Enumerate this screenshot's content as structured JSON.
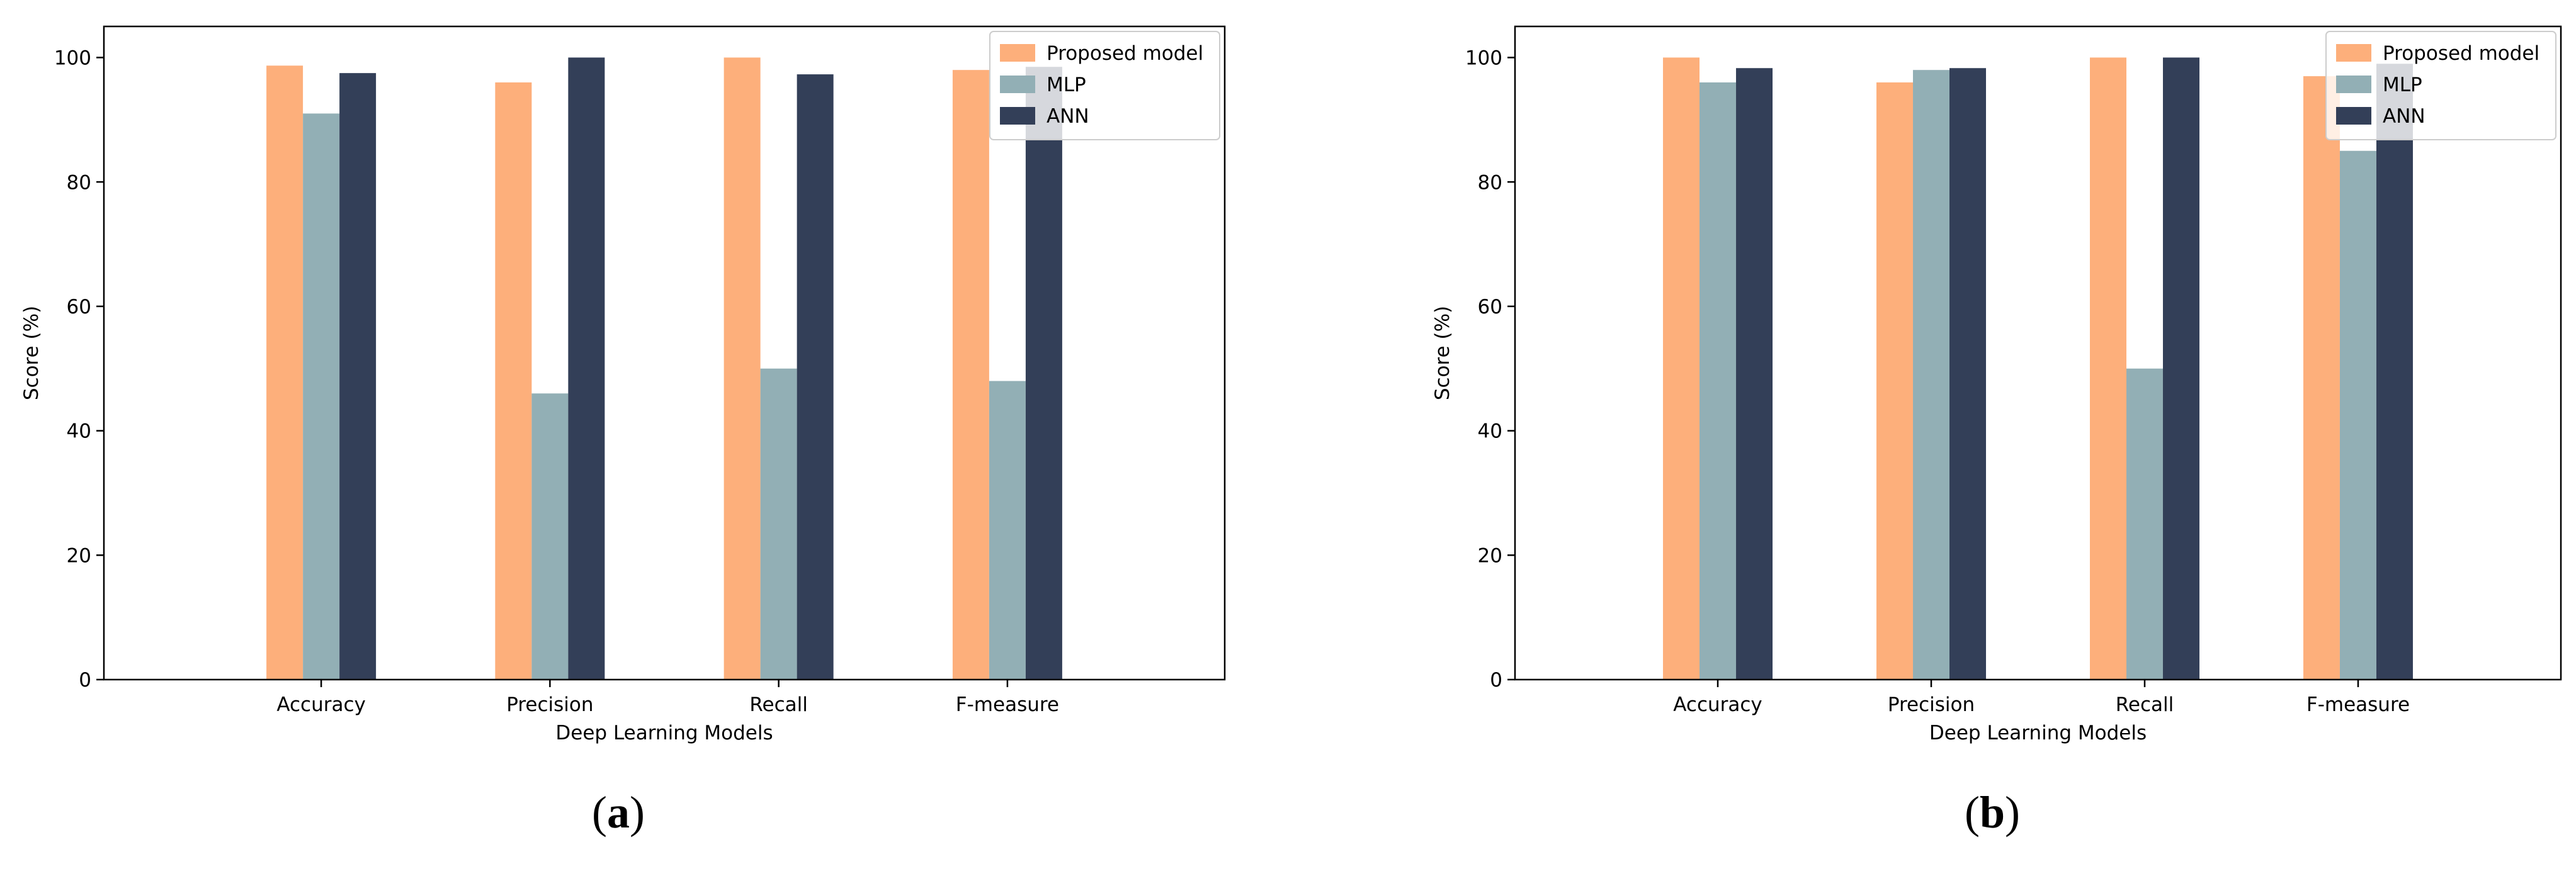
{
  "colors": {
    "proposed": "#FDAF7B",
    "mlp": "#92AFB5",
    "ann": "#333F58",
    "axis": "#000000",
    "legend_border": "#CCCCCC"
  },
  "captions": [
    {
      "open": "(",
      "letter": "a",
      "close": ")"
    },
    {
      "open": "(",
      "letter": "b",
      "close": ")"
    }
  ],
  "chart_data": [
    {
      "type": "bar",
      "title": "",
      "xlabel": "Deep Learning Models",
      "ylabel": "Score (%)",
      "ylim": [
        0,
        105
      ],
      "yticks": [
        "0",
        "20",
        "40",
        "60",
        "80",
        "100"
      ],
      "categories": [
        "Accuracy",
        "Precision",
        "Recall",
        "F-measure"
      ],
      "legend_position": "top-right",
      "series": [
        {
          "name": "Proposed model",
          "color_key": "proposed",
          "values": [
            98.7,
            96.0,
            100.0,
            98.0
          ]
        },
        {
          "name": "MLP",
          "color_key": "mlp",
          "values": [
            91.0,
            46.0,
            50.0,
            48.0
          ]
        },
        {
          "name": "ANN",
          "color_key": "ann",
          "values": [
            97.5,
            100.0,
            97.3,
            98.5
          ]
        }
      ]
    },
    {
      "type": "bar",
      "title": "",
      "xlabel": "Deep Learning Models",
      "ylabel": "Score (%)",
      "ylim": [
        0,
        105
      ],
      "yticks": [
        "0",
        "20",
        "40",
        "60",
        "80",
        "100"
      ],
      "categories": [
        "Accuracy",
        "Precision",
        "Recall",
        "F-measure"
      ],
      "legend_position": "top-right",
      "series": [
        {
          "name": "Proposed model",
          "color_key": "proposed",
          "values": [
            100.0,
            96.0,
            100.0,
            97.0
          ]
        },
        {
          "name": "MLP",
          "color_key": "mlp",
          "values": [
            96.0,
            98.0,
            50.0,
            85.0
          ]
        },
        {
          "name": "ANN",
          "color_key": "ann",
          "values": [
            98.3,
            98.3,
            100.0,
            99.0
          ]
        }
      ]
    }
  ]
}
